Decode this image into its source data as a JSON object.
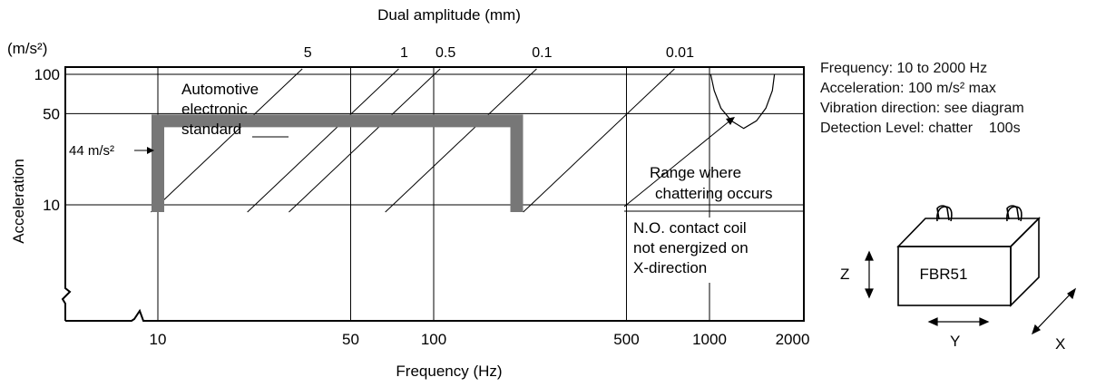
{
  "chart_data": {
    "type": "line",
    "title": "",
    "xlabel": "Frequency (Hz)",
    "ylabel": "Acceleration",
    "y_unit": "(m/s²)",
    "top_axis_label": "Dual amplitude (mm)",
    "x_scale": "log",
    "y_scale": "log",
    "xlim": [
      8,
      2000
    ],
    "ylim": [
      5.2,
      100
    ],
    "x_ticks": [
      10,
      50,
      100,
      500,
      1000,
      2000
    ],
    "x_tick_labels": [
      "10",
      "50",
      "100",
      "500",
      "1000",
      "2000"
    ],
    "y_ticks": [
      10,
      50,
      100
    ],
    "y_tick_labels": [
      "10",
      "50",
      "100"
    ],
    "grid": true,
    "axis_break_marks": true,
    "dual_amplitude_lines": [
      {
        "label": "5",
        "mm": 5
      },
      {
        "label": "1",
        "mm": 1
      },
      {
        "label": "0.5",
        "mm": 0.5
      },
      {
        "label": "0.1",
        "mm": 0.1
      },
      {
        "label": "0.01",
        "mm": 0.01
      }
    ],
    "standard_band": {
      "label": "Automotive electronic standard",
      "level_label": "44 m/s²",
      "acceleration": 44,
      "freq_range": [
        10,
        200
      ],
      "lower_acceleration": 8.8
    },
    "chatter_curve": {
      "label": "Range where chattering occurs",
      "x": [
        1010,
        1040,
        1100,
        1200,
        1330,
        1480,
        1600,
        1690,
        1720
      ],
      "y": [
        100,
        75,
        55,
        44,
        38.5,
        44,
        55,
        75,
        100
      ]
    },
    "annotations": [
      "Range where chattering occurs",
      "N.O. contact coil not energized on X-direction"
    ]
  },
  "specs": [
    {
      "label": "Frequency",
      "value": "10 to 2000 Hz"
    },
    {
      "label": "Acceleration",
      "value": "100 m/s² max"
    },
    {
      "label": "Vibration direction",
      "value": "see diagram"
    },
    {
      "label": "Detection Level",
      "value": "chatter    100s"
    }
  ],
  "diagram": {
    "device_label": "FBR51",
    "axes": [
      "X",
      "Y",
      "Z"
    ]
  },
  "colors": {
    "band": "#777777",
    "line": "#000000"
  }
}
